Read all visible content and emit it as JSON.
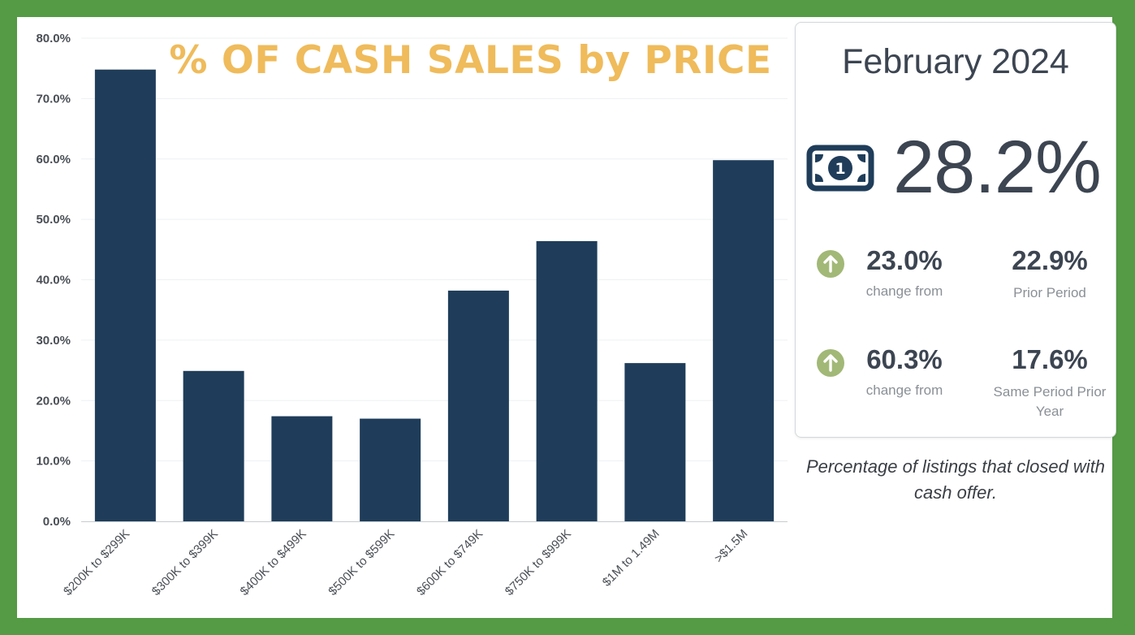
{
  "chart_data": {
    "type": "bar",
    "title": "% OF CASH SALES by PRICE",
    "categories": [
      "$200K to $299K",
      "$300K to $399K",
      "$400K to $499K",
      "$500K to $599K",
      "$600K to $749K",
      "$750K to $999K",
      "$1M to 1.49M",
      ">$1.5M"
    ],
    "values": [
      74.8,
      24.9,
      17.4,
      17.0,
      38.2,
      46.4,
      26.2,
      59.8
    ],
    "ylim": [
      0,
      80
    ],
    "yticks": [
      "0.0%",
      "10.0%",
      "20.0%",
      "30.0%",
      "40.0%",
      "50.0%",
      "60.0%",
      "70.0%",
      "80.0%"
    ],
    "xlabel": "",
    "ylabel": "",
    "grid": true,
    "bar_color": "#1f3d5a"
  },
  "summary": {
    "period": "February 2024",
    "icon": "cash-bill-icon",
    "main_value": "28.2%",
    "rows": [
      {
        "change_value": "23.0%",
        "change_label": "change from",
        "compare_value": "22.9%",
        "compare_label": "Prior Period",
        "direction_icon": "arrow-up-circle-icon"
      },
      {
        "change_value": "60.3%",
        "change_label": "change from",
        "compare_value": "17.6%",
        "compare_label": "Same Period Prior Year",
        "direction_icon": "arrow-up-circle-icon"
      }
    ],
    "description": "Percentage of listings that closed with cash offer."
  },
  "colors": {
    "frame": "#559a44",
    "title": "#efbb5b",
    "text_dark": "#3c4551",
    "arrow_circle": "#a2b877"
  }
}
